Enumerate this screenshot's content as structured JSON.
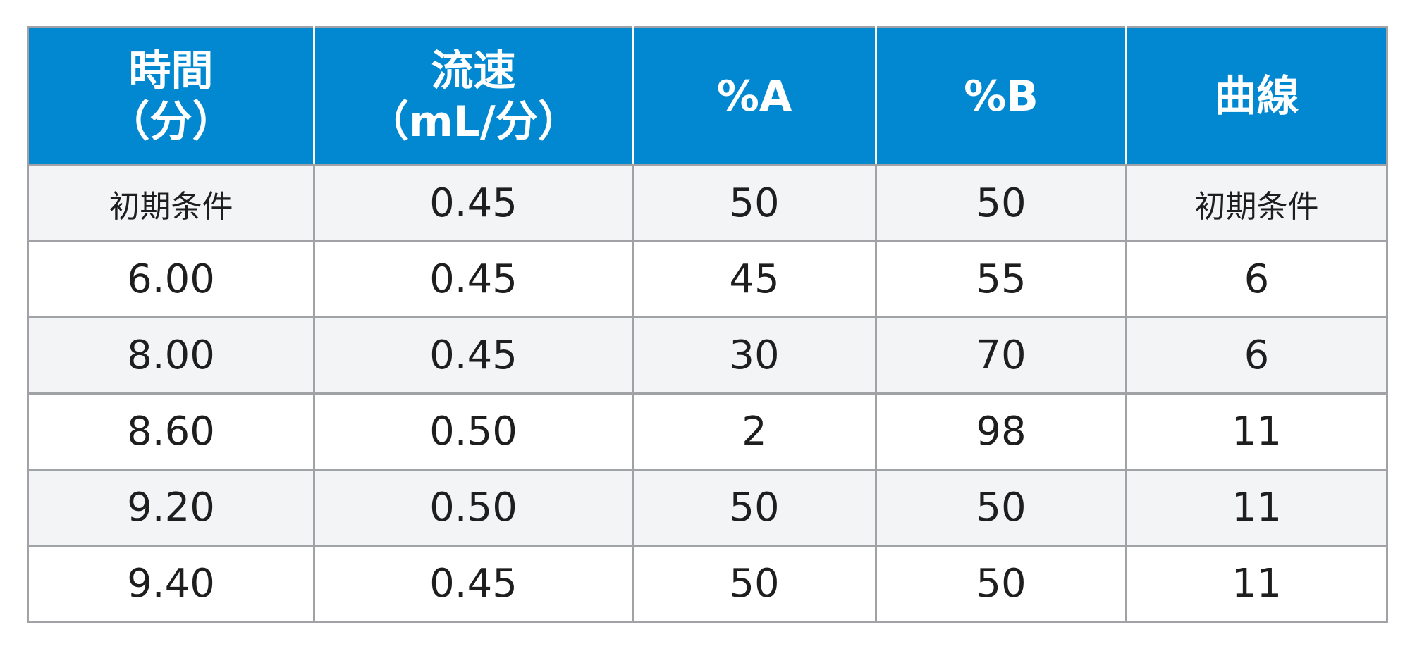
{
  "table": {
    "headers": [
      [
        "時間",
        "（分）"
      ],
      [
        "流速",
        "（mL/分）"
      ],
      [
        "%A"
      ],
      [
        "%B"
      ],
      [
        "曲線"
      ]
    ],
    "rows": [
      [
        "初期条件",
        "0.45",
        "50",
        "50",
        "初期条件"
      ],
      [
        "6.00",
        "0.45",
        "45",
        "55",
        "6"
      ],
      [
        "8.00",
        "0.45",
        "30",
        "70",
        "6"
      ],
      [
        "8.60",
        "0.50",
        "2",
        "98",
        "11"
      ],
      [
        "9.20",
        "0.50",
        "50",
        "50",
        "11"
      ],
      [
        "9.40",
        "0.45",
        "50",
        "50",
        "11"
      ]
    ],
    "colors": {
      "header_bg": "#0288d1",
      "header_text": "#ffffff",
      "row_alt_bg": "#f3f4f5",
      "grid": "#a0a2a5"
    }
  }
}
